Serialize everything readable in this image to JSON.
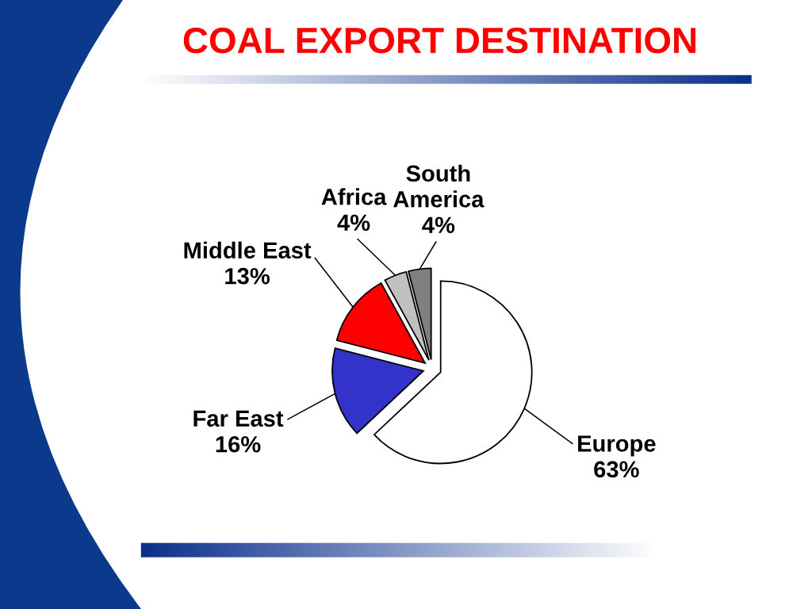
{
  "chart_data": {
    "type": "pie",
    "title": "COAL EXPORT DESTINATION",
    "categories": [
      "Europe",
      "Far East",
      "Middle East",
      "Africa",
      "South\nAmerica"
    ],
    "values": [
      63,
      16,
      13,
      4,
      4
    ],
    "colors": [
      "#ffffff",
      "#3333cc",
      "#ff0000",
      "#c0c0c0",
      "#808080"
    ],
    "value_labels": [
      "63%",
      "16%",
      "13%",
      "4%",
      "4%"
    ]
  }
}
